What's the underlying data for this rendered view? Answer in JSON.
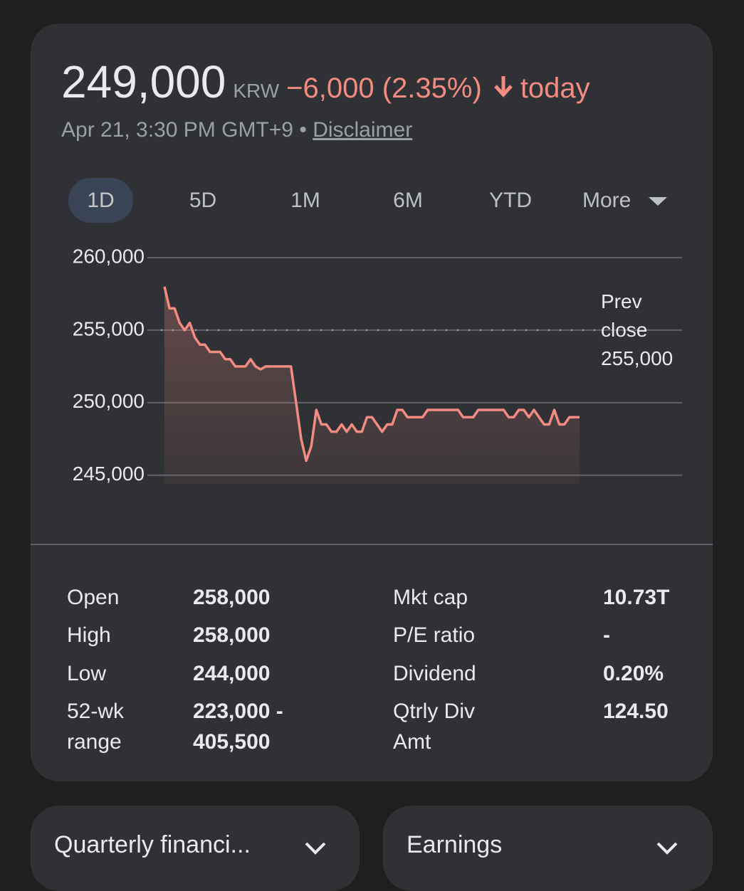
{
  "header": {
    "price": "249,000",
    "currency": "KRW",
    "change": "−6,000 (2.35%)",
    "period": "today",
    "timestamp": "Apr 21, 3:30 PM GMT+9",
    "separator": "•",
    "disclaimer": "Disclaimer"
  },
  "tabs": [
    "1D",
    "5D",
    "1M",
    "6M",
    "YTD",
    "More"
  ],
  "chart_data": {
    "type": "line",
    "color": "#f28b82",
    "values": [
      258000,
      256500,
      256500,
      255500,
      255000,
      255500,
      254500,
      254000,
      254000,
      253500,
      253500,
      253500,
      253000,
      253000,
      252500,
      252500,
      252500,
      253000,
      252500,
      252300,
      252500,
      252500,
      252500,
      252500,
      252500,
      252500,
      250000,
      247500,
      246000,
      247000,
      249500,
      248500,
      248500,
      248000,
      248000,
      248500,
      248000,
      248500,
      248000,
      248000,
      249000,
      249000,
      248500,
      248000,
      248500,
      248500,
      249500,
      249500,
      249000,
      249000,
      249000,
      249000,
      249500,
      249500,
      249500,
      249500,
      249500,
      249500,
      249500,
      249000,
      249000,
      249000,
      249500,
      249500,
      249500,
      249500,
      249500,
      249500,
      249000,
      249000,
      249500,
      249500,
      249000,
      249500,
      249000,
      248500,
      248500,
      249500,
      248500,
      248500,
      249000,
      249000,
      249000
    ],
    "ylim": [
      244400,
      260000
    ],
    "yticks": [
      {
        "value": 260000,
        "label": "260,000"
      },
      {
        "value": 255000,
        "label": "255,000"
      },
      {
        "value": 250000,
        "label": "250,000"
      },
      {
        "value": 245000,
        "label": "245,000"
      }
    ],
    "grid": true,
    "prev_close": {
      "label": "Prev close",
      "value": 255000,
      "value_label": "255,000"
    }
  },
  "stats": {
    "left": [
      {
        "label": "Open",
        "value": "258,000"
      },
      {
        "label": "High",
        "value": "258,000"
      },
      {
        "label": "Low",
        "value": "244,000"
      },
      {
        "label": "52-wk range",
        "value": "223,000 - 405,500"
      }
    ],
    "right": [
      {
        "label": "Mkt cap",
        "value": "10.73T"
      },
      {
        "label": "P/E ratio",
        "value": "-"
      },
      {
        "label": "Dividend",
        "value": "0.20%"
      },
      {
        "label": "Qtrly Div Amt",
        "value": "124.50"
      }
    ]
  },
  "cards": [
    "Quarterly financi...",
    "Earnings"
  ]
}
